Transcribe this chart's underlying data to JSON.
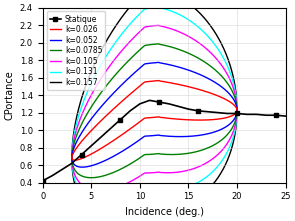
{
  "title": "",
  "xlabel": "Incidence (deg.)",
  "ylabel": "CPortance",
  "xlim": [
    0,
    25
  ],
  "ylim": [
    0.4,
    2.4
  ],
  "xticks": [
    0,
    5,
    10,
    15,
    20,
    25
  ],
  "yticks": [
    0.4,
    0.6,
    0.8,
    1.0,
    1.2,
    1.4,
    1.6,
    1.8,
    2.0,
    2.2,
    2.4
  ],
  "legend_labels": [
    "Statique",
    "k=0.026",
    "k=0.052",
    "k=0.0785",
    "k=0.105",
    "k=0.131",
    "k=0.157"
  ],
  "legend_colors": [
    "black",
    "red",
    "blue",
    "green",
    "magenta",
    "cyan",
    "black"
  ],
  "line_styles": [
    "-",
    "-",
    "-",
    "-",
    "-",
    "-",
    "-"
  ],
  "figsize": [
    2.95,
    2.21
  ],
  "dpi": 100
}
